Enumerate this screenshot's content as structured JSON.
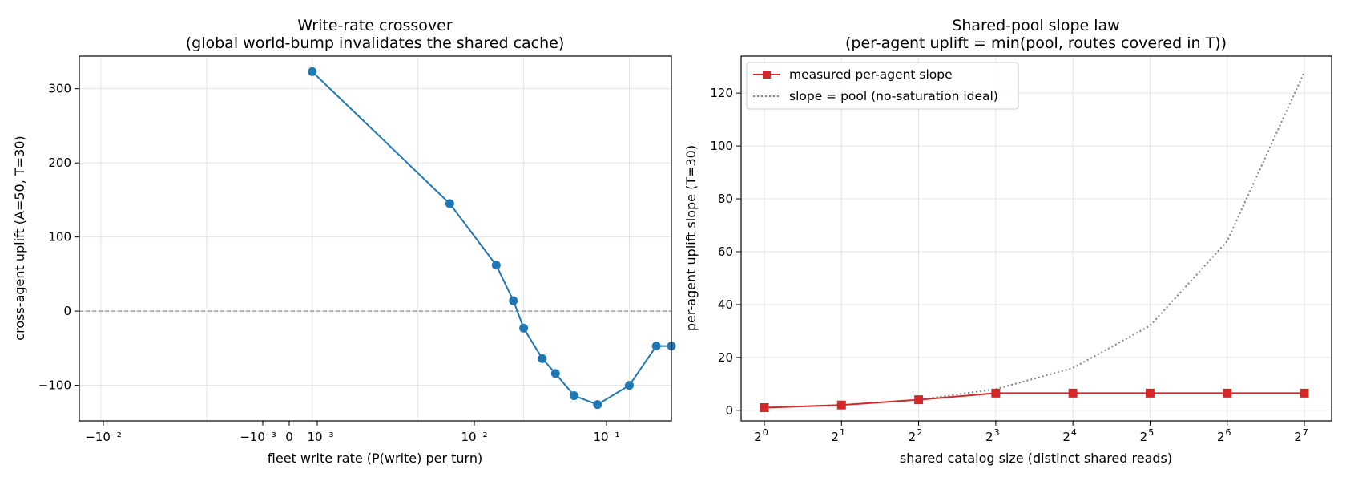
{
  "chart_data": [
    {
      "type": "line",
      "title": "Write-rate crossover",
      "subtitle": "(global world-bump invalidates the shared cache)",
      "xlabel": "fleet write rate  (P(write) per turn)",
      "ylabel": "cross-agent uplift  (A=50, T=30)",
      "xscale": "symlog",
      "xlim": [
        -0.016,
        0.25
      ],
      "ylim": [
        -148,
        344
      ],
      "yticks": [
        -100,
        0,
        100,
        200,
        300
      ],
      "yticklabels": [
        "−100",
        "0",
        "100",
        "200",
        "300"
      ],
      "xticklabels": [
        "−10⁻²",
        "−10⁻³",
        "0",
        "10⁻³",
        "10⁻²",
        "10⁻¹"
      ],
      "grid": true,
      "reference_line": {
        "y": 0,
        "style": "dashed",
        "color": "#888888"
      },
      "series": [
        {
          "color": "#1f77b4",
          "marker": "circle",
          "x": [
            0,
            0.002,
            0.0055,
            0.008,
            0.01,
            0.015,
            0.02,
            0.03,
            0.05,
            0.1,
            0.18,
            0.25
          ],
          "values": [
            323,
            145,
            62,
            14,
            -23,
            -64,
            -84,
            -114,
            -126,
            -100,
            -47,
            -47
          ]
        }
      ]
    },
    {
      "type": "line",
      "title": "Shared-pool slope law",
      "subtitle": "(per-agent uplift = min(pool, routes covered in T))",
      "xlabel": "shared catalog size  (distinct shared reads)",
      "ylabel": "per-agent uplift slope  (T=30)",
      "xscale": "log2",
      "xlim": [
        0,
        7
      ],
      "ylim": [
        -4,
        134
      ],
      "xticks": [
        0,
        1,
        2,
        3,
        4,
        5,
        6,
        7
      ],
      "xtick_base": "2",
      "yticks": [
        0,
        20,
        40,
        60,
        80,
        100,
        120
      ],
      "grid": true,
      "legend_position": "upper-left",
      "series": [
        {
          "name": "measured per-agent slope",
          "color": "#d62728",
          "marker": "square",
          "style": "solid",
          "x": [
            1,
            2,
            4,
            8,
            16,
            32,
            64,
            128
          ],
          "values": [
            1,
            2,
            4,
            6.5,
            6.5,
            6.5,
            6.5,
            6.5
          ]
        },
        {
          "name": "slope = pool (no-saturation ideal)",
          "color": "#808080",
          "marker": "none",
          "style": "dotted",
          "x": [
            1,
            2,
            4,
            8,
            16,
            32,
            64,
            128
          ],
          "values": [
            1,
            2,
            4,
            8,
            16,
            32,
            64,
            128
          ]
        }
      ]
    }
  ]
}
